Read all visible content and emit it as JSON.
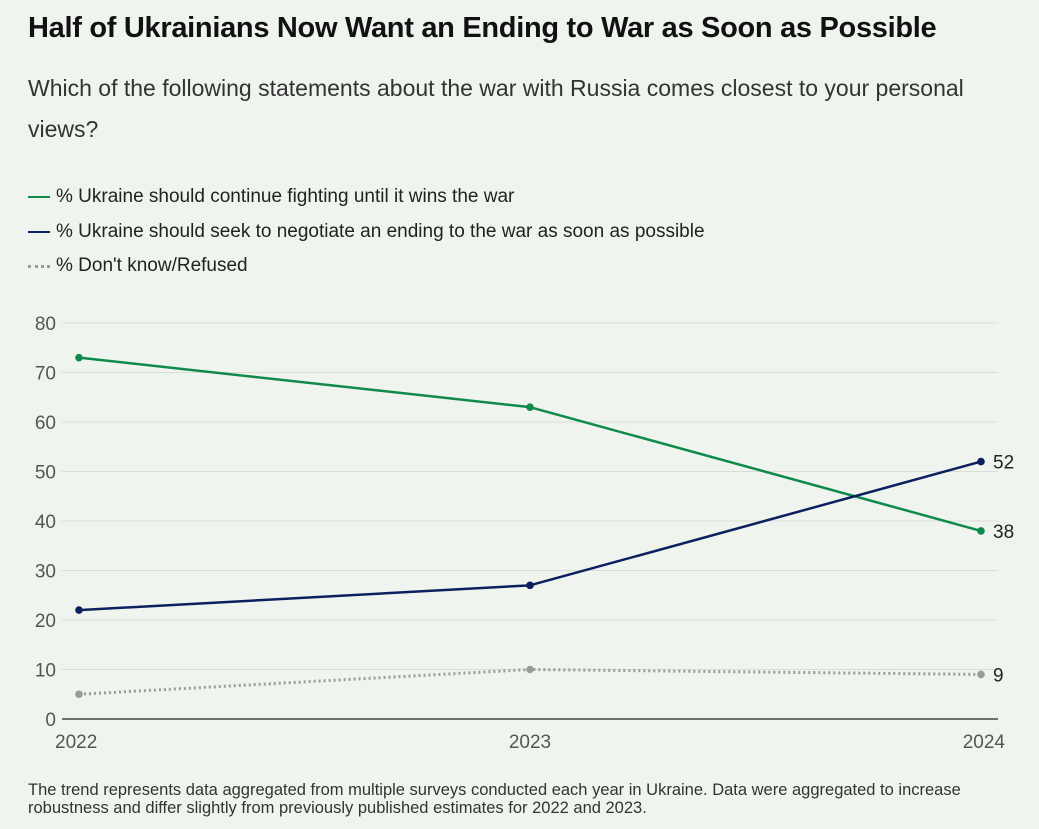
{
  "title": "Half of Ukrainians Now Want an Ending to War as Soon as Possible",
  "subtitle": "Which of the following statements about the war with Russia comes closest to your personal views?",
  "footnote": "The trend represents data aggregated from multiple surveys conducted each year in Ukraine. Data were aggregated to increase robustness and differ slightly from previously published estimates for 2022 and 2023.",
  "chart_data": {
    "type": "line",
    "title": "Half of Ukrainians Now Want an Ending to War as Soon as Possible",
    "subtitle": "Which of the following statements about the war with Russia comes closest to your personal views?",
    "xlabel": "",
    "ylabel": "",
    "x": [
      "2022",
      "2023",
      "2024"
    ],
    "ylim": [
      0,
      80
    ],
    "yticks": [
      0,
      10,
      20,
      30,
      40,
      50,
      60,
      70,
      80
    ],
    "grid": true,
    "legend_position": "top-left",
    "series": [
      {
        "name": "% Ukraine should continue fighting until it wins the war",
        "values": [
          73,
          63,
          38
        ],
        "color": "#0f8a4a",
        "style": "solid",
        "end_label": "38"
      },
      {
        "name": "% Ukraine should seek to negotiate an ending to the war as soon as possible",
        "values": [
          22,
          27,
          52
        ],
        "color": "#0c1f5e",
        "style": "solid",
        "end_label": "52"
      },
      {
        "name": "% Don't know/Refused",
        "values": [
          5,
          10,
          9
        ],
        "color": "#9a9a9a",
        "style": "dotted",
        "end_label": "9"
      }
    ]
  }
}
